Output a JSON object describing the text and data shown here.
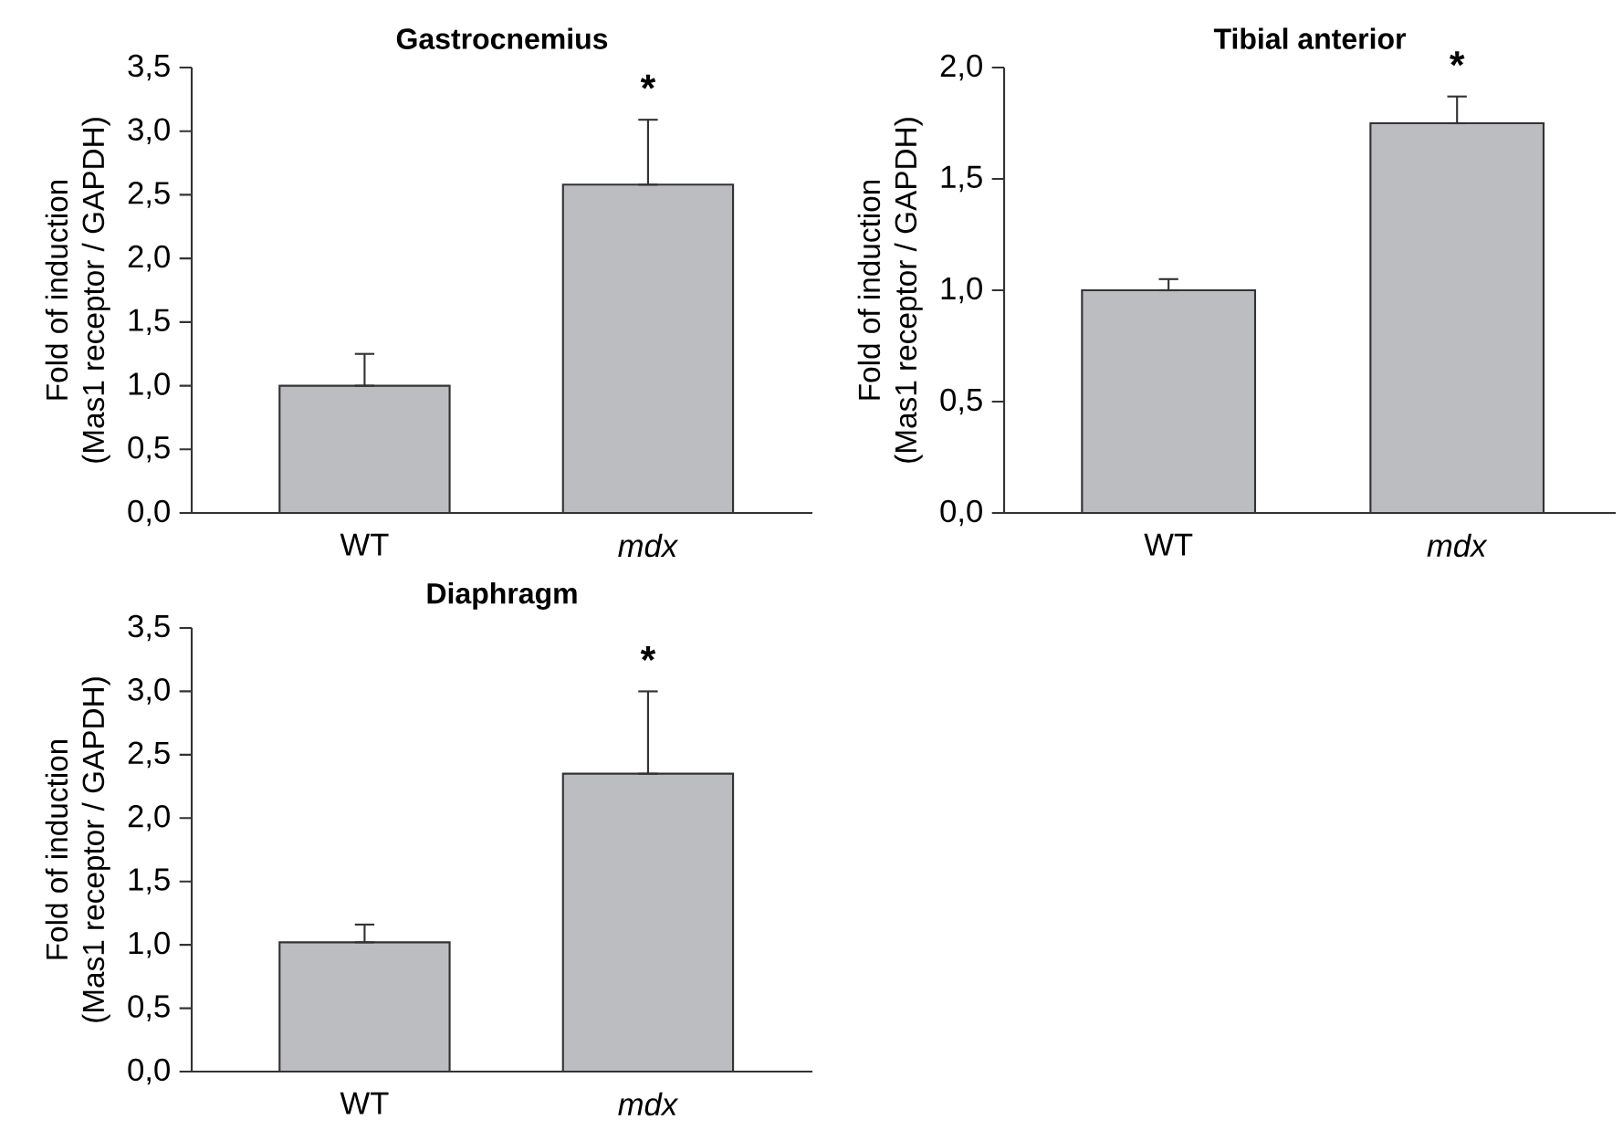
{
  "chart_data": [
    {
      "type": "bar",
      "title": "Gastrocnemius",
      "ylabel": "Fold of induction (Mas1 receptor / GAPDH)",
      "categories": [
        "WT",
        "*mdx*"
      ],
      "values": [
        1.0,
        2.58
      ],
      "errors": [
        [
          1.0,
          1.25
        ],
        [
          2.58,
          3.09
        ]
      ],
      "color": "#bcbdc0",
      "ylim": [
        0,
        3.5
      ],
      "yticks": [
        {
          "value": 0,
          "label": "0,0"
        },
        {
          "value": 0.5,
          "label": "0,5"
        },
        {
          "value": 1,
          "label": "1,0"
        },
        {
          "value": 1.5,
          "label": "1,5"
        },
        {
          "value": 2,
          "label": "2,0"
        },
        {
          "value": 2.5,
          "label": "2,5"
        },
        {
          "value": 3,
          "label": "3,0"
        },
        {
          "value": 3.5,
          "label": "3,5"
        }
      ],
      "annotations": [
        "*"
      ]
    },
    {
      "type": "bar",
      "title": "Tibial anterior",
      "ylabel": "Fold of induction (Mas1 receptor / GAPDH)",
      "categories": [
        "WT",
        "*mdx*"
      ],
      "values": [
        1.0,
        1.75
      ],
      "errors": [
        [
          1.0,
          1.05
        ],
        [
          1.75,
          1.87
        ]
      ],
      "color": "#bcbdc0",
      "ylim": [
        0,
        2.0
      ],
      "yticks": [
        {
          "value": 0,
          "label": "0,0"
        },
        {
          "value": 0.5,
          "label": "0,5"
        },
        {
          "value": 1,
          "label": "1,0"
        },
        {
          "value": 1.5,
          "label": "1,5"
        },
        {
          "value": 2,
          "label": "2,0"
        }
      ],
      "annotations": [
        "*"
      ]
    },
    {
      "type": "bar",
      "title": "Diaphragm",
      "ylabel": "Fold of induction (Mas1 receptor / GAPDH)",
      "categories": [
        "WT",
        "*mdx*"
      ],
      "values": [
        1.02,
        2.35
      ],
      "errors": [
        [
          1.02,
          1.16
        ],
        [
          2.35,
          3.0
        ]
      ],
      "color": "#bcbdc0",
      "ylim": [
        0,
        3.5
      ],
      "yticks": [
        {
          "value": 0,
          "label": "0,0"
        },
        {
          "value": 0.5,
          "label": "0,5"
        },
        {
          "value": 1,
          "label": "1,0"
        },
        {
          "value": 1.5,
          "label": "1,5"
        },
        {
          "value": 2,
          "label": "2,0"
        },
        {
          "value": 2.5,
          "label": "2,5"
        },
        {
          "value": 3,
          "label": "3,0"
        },
        {
          "value": 3.5,
          "label": "3,5"
        }
      ],
      "annotations": [
        "*"
      ]
    }
  ]
}
